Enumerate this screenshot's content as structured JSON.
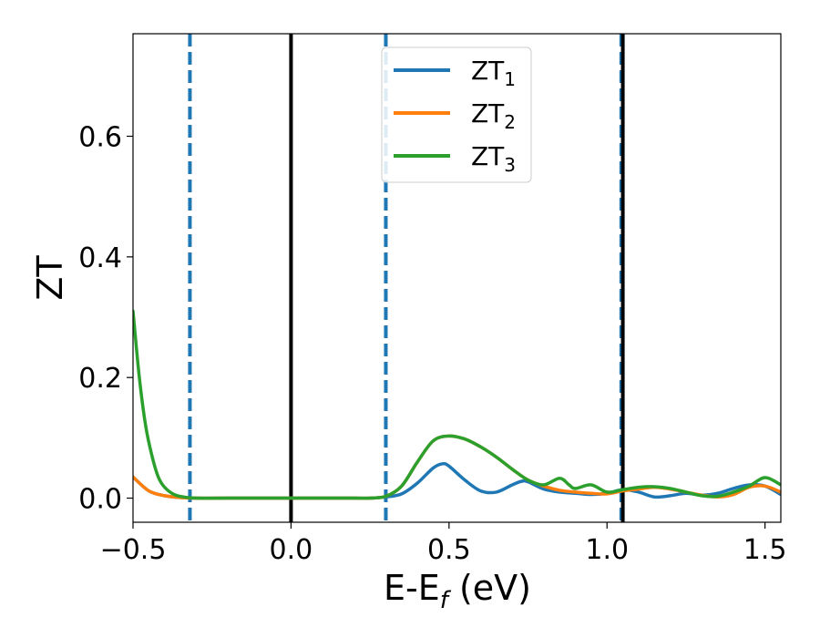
{
  "chart_data": {
    "type": "line",
    "xlabel": "E-E",
    "xlabel_sub": "f",
    "xlabel_unit": "(eV)",
    "ylabel": "ZT",
    "xlim": [
      -0.5,
      1.55
    ],
    "ylim": [
      -0.04,
      0.77
    ],
    "xticks": [
      -0.5,
      0.0,
      0.5,
      1.0,
      1.5
    ],
    "xtick_labels": [
      "−0.5",
      "0.0",
      "0.5",
      "1.0",
      "1.5"
    ],
    "yticks": [
      0.0,
      0.2,
      0.4,
      0.6
    ],
    "ytick_labels": [
      "0.0",
      "0.2",
      "0.4",
      "0.6"
    ],
    "grid": false,
    "legend_position": "top-center",
    "vertical_lines": [
      {
        "x": -0.32,
        "style": "dashed",
        "color": "#1f77b4"
      },
      {
        "x": 0.0,
        "style": "solid",
        "color": "#000000"
      },
      {
        "x": 0.3,
        "style": "dashed",
        "color": "#1f77b4"
      },
      {
        "x": 1.045,
        "style": "dashed",
        "color": "#1f77b4"
      },
      {
        "x": 1.05,
        "style": "solid",
        "color": "#000000"
      }
    ],
    "series": [
      {
        "name": "ZT",
        "name_sub": "1",
        "color": "#1f77b4",
        "x": [
          -0.5,
          -0.45,
          -0.4,
          -0.35,
          -0.3,
          -0.2,
          -0.1,
          0.0,
          0.1,
          0.2,
          0.25,
          0.3,
          0.35,
          0.4,
          0.45,
          0.48,
          0.5,
          0.55,
          0.6,
          0.65,
          0.7,
          0.73,
          0.75,
          0.8,
          0.85,
          0.9,
          0.95,
          1.0,
          1.05,
          1.1,
          1.15,
          1.2,
          1.25,
          1.3,
          1.35,
          1.4,
          1.45,
          1.5,
          1.55
        ],
        "y": [
          0.035,
          0.012,
          0.004,
          0.001,
          0.0,
          0.0,
          0.0,
          0.0,
          0.0,
          0.0,
          0.0,
          0.002,
          0.007,
          0.025,
          0.05,
          0.057,
          0.053,
          0.03,
          0.012,
          0.01,
          0.022,
          0.028,
          0.027,
          0.015,
          0.01,
          0.008,
          0.006,
          0.008,
          0.014,
          0.01,
          0.002,
          0.004,
          0.008,
          0.005,
          0.008,
          0.016,
          0.022,
          0.02,
          0.006
        ]
      },
      {
        "name": "ZT",
        "name_sub": "2",
        "color": "#ff7f0e",
        "x": [
          -0.5,
          -0.45,
          -0.4,
          -0.35,
          -0.3,
          -0.2,
          -0.1,
          0.0,
          0.1,
          0.2,
          0.25,
          0.3,
          0.35,
          0.4,
          0.45,
          0.5,
          0.55,
          0.6,
          0.65,
          0.7,
          0.75,
          0.8,
          0.85,
          0.9,
          0.95,
          1.0,
          1.05,
          1.1,
          1.15,
          1.2,
          1.25,
          1.3,
          1.35,
          1.4,
          1.45,
          1.5,
          1.55
        ],
        "y": [
          0.035,
          0.012,
          0.004,
          0.001,
          0.0,
          0.0,
          0.0,
          0.0,
          0.0,
          0.0,
          0.0,
          0.003,
          0.02,
          0.06,
          0.095,
          0.103,
          0.098,
          0.085,
          0.068,
          0.048,
          0.03,
          0.02,
          0.013,
          0.01,
          0.008,
          0.007,
          0.012,
          0.015,
          0.018,
          0.015,
          0.01,
          0.005,
          0.002,
          0.006,
          0.018,
          0.02,
          0.01
        ]
      },
      {
        "name": "ZT",
        "name_sub": "3",
        "color": "#2ca02c",
        "x": [
          -0.5,
          -0.48,
          -0.46,
          -0.44,
          -0.42,
          -0.4,
          -0.37,
          -0.34,
          -0.3,
          -0.2,
          -0.1,
          0.0,
          0.1,
          0.2,
          0.25,
          0.3,
          0.35,
          0.4,
          0.45,
          0.5,
          0.55,
          0.6,
          0.65,
          0.7,
          0.75,
          0.8,
          0.85,
          0.88,
          0.9,
          0.95,
          1.0,
          1.05,
          1.1,
          1.15,
          1.2,
          1.25,
          1.3,
          1.35,
          1.4,
          1.45,
          1.5,
          1.55
        ],
        "y": [
          0.31,
          0.2,
          0.12,
          0.07,
          0.035,
          0.018,
          0.006,
          0.002,
          0.0,
          0.0,
          0.0,
          0.0,
          0.0,
          0.0,
          0.0,
          0.003,
          0.02,
          0.06,
          0.095,
          0.103,
          0.098,
          0.085,
          0.068,
          0.048,
          0.03,
          0.022,
          0.033,
          0.022,
          0.016,
          0.022,
          0.01,
          0.014,
          0.018,
          0.019,
          0.016,
          0.01,
          0.004,
          0.003,
          0.01,
          0.02,
          0.034,
          0.022
        ]
      }
    ]
  }
}
